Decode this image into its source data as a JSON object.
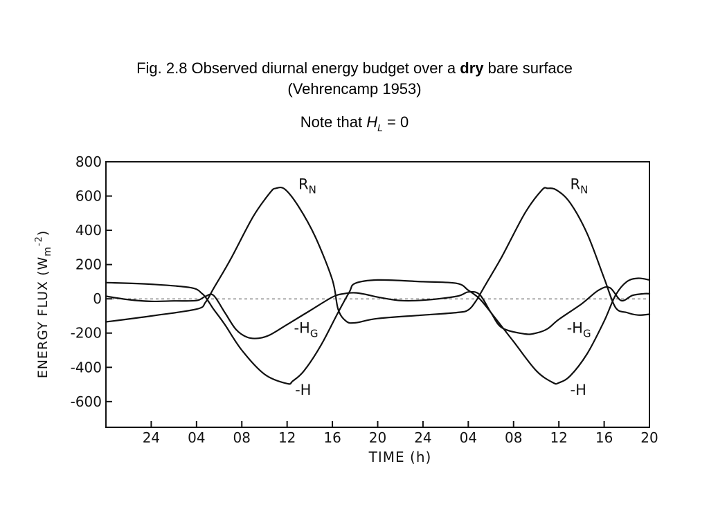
{
  "slide": {
    "title_prefix": "Fig. 2.8  Observed diurnal energy budget over a ",
    "title_bold": "dry",
    "title_suffix": " bare surface",
    "subtitle": "(Vehrencamp 1953)",
    "note_prefix": "Note that ",
    "note_var": "H",
    "note_sub": "L",
    "note_suffix": " = 0"
  },
  "chart_data": {
    "type": "line",
    "xlabel": "TIME (h)",
    "ylabel": "ENERGY FLUX (W m-2)",
    "ylabel_main": "ENERGY FLUX (W",
    "ylabel_m": "m",
    "ylabel_exp": "-2",
    "ylabel_close": ")",
    "ylim": [
      -750,
      800
    ],
    "xlim": [
      20,
      68
    ],
    "x_ticks": [
      {
        "x": 24,
        "label": "24"
      },
      {
        "x": 28,
        "label": "04"
      },
      {
        "x": 32,
        "label": "08"
      },
      {
        "x": 36,
        "label": "12"
      },
      {
        "x": 40,
        "label": "16"
      },
      {
        "x": 44,
        "label": "20"
      },
      {
        "x": 48,
        "label": "24"
      },
      {
        "x": 52,
        "label": "04"
      },
      {
        "x": 56,
        "label": "08"
      },
      {
        "x": 60,
        "label": "12"
      },
      {
        "x": 64,
        "label": "16"
      },
      {
        "x": 68,
        "label": "20"
      }
    ],
    "y_ticks": [
      {
        "y": 800,
        "label": "800"
      },
      {
        "y": 600,
        "label": "600"
      },
      {
        "y": 400,
        "label": "400"
      },
      {
        "y": 200,
        "label": "200"
      },
      {
        "y": 0,
        "label": "0"
      },
      {
        "y": -200,
        "label": "-200"
      },
      {
        "y": -400,
        "label": "-400"
      },
      {
        "y": -600,
        "label": "-600"
      }
    ],
    "grid": false,
    "zero_line": true,
    "series": [
      {
        "name": "RN",
        "x": [
          20,
          24,
          28,
          28.8,
          29.5,
          31,
          33,
          34.5,
          35,
          35.8,
          37,
          38.5,
          40,
          40.5,
          41.2,
          42,
          44,
          48,
          51,
          52,
          52.7,
          53.5,
          55,
          57,
          58.5,
          59,
          59.8,
          61,
          62.5,
          64,
          65,
          66,
          67,
          68
        ],
        "y": [
          -135,
          -100,
          -60,
          -20,
          60,
          230,
          480,
          620,
          645,
          640,
          540,
          360,
          110,
          -60,
          -130,
          -140,
          -115,
          -95,
          -80,
          -65,
          -10,
          80,
          250,
          500,
          635,
          645,
          635,
          560,
          380,
          120,
          -50,
          -80,
          -95,
          -90
        ]
      },
      {
        "name": "-HG",
        "x": [
          20,
          22,
          24,
          26,
          28,
          28.8,
          29.5,
          30.5,
          31.5,
          32.5,
          33.5,
          34.5,
          36,
          38,
          40,
          41,
          42,
          43,
          44,
          46,
          48,
          51,
          52,
          53,
          54,
          55,
          57,
          58,
          59,
          60,
          62,
          63.5,
          64.5,
          65.5,
          66.5,
          67.5,
          68
        ],
        "y": [
          15,
          -5,
          -15,
          -12,
          -10,
          15,
          20,
          -80,
          -180,
          -225,
          -230,
          -210,
          -150,
          -70,
          10,
          30,
          35,
          25,
          10,
          -10,
          -8,
          15,
          40,
          25,
          -80,
          -170,
          -205,
          -200,
          -175,
          -120,
          -30,
          50,
          65,
          -10,
          20,
          30,
          30
        ]
      },
      {
        "name": "-H",
        "x": [
          20,
          24,
          27.5,
          28.5,
          29,
          29.5,
          30.5,
          32,
          34,
          36,
          36.5,
          37.5,
          39,
          40.5,
          41.5,
          42,
          44,
          48,
          51,
          52,
          53,
          54,
          56,
          58,
          59.5,
          60,
          61,
          62.5,
          64,
          65,
          66,
          67,
          68
        ],
        "y": [
          95,
          85,
          65,
          30,
          -10,
          -60,
          -150,
          -300,
          -440,
          -495,
          -480,
          -420,
          -270,
          -80,
          40,
          90,
          110,
          100,
          90,
          50,
          0,
          -80,
          -250,
          -420,
          -490,
          -490,
          -450,
          -320,
          -130,
          20,
          100,
          120,
          110
        ]
      }
    ],
    "annotations": [
      {
        "text": "R",
        "sub": "N",
        "x": 37,
        "y": 640
      },
      {
        "text": "R",
        "sub": "N",
        "x": 61,
        "y": 640
      },
      {
        "text": "-H",
        "sub": "G",
        "x": 36.6,
        "y": -200
      },
      {
        "text": "-H",
        "sub": "G",
        "x": 60.7,
        "y": -200
      },
      {
        "text": "-H",
        "sub": "",
        "x": 36.7,
        "y": -560
      },
      {
        "text": "-H",
        "sub": "",
        "x": 61,
        "y": -560
      }
    ]
  }
}
